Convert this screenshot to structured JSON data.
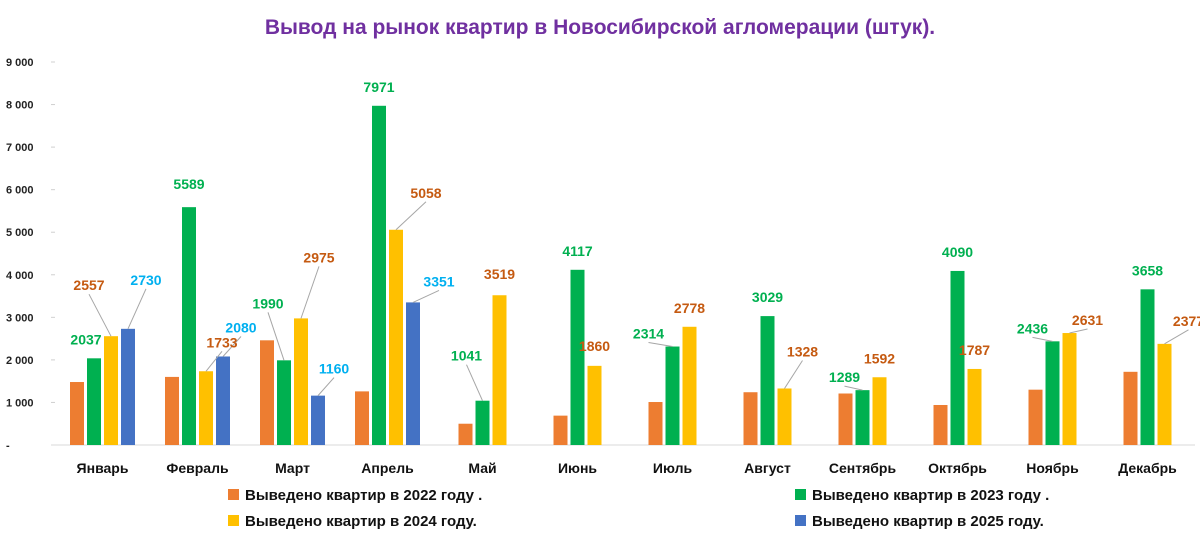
{
  "chart_data": {
    "type": "bar",
    "title": "Вывод на рынок квартир в Новосибирской агломерации (штук).",
    "xlabel": "",
    "ylabel": "",
    "ylim": [
      0,
      9000
    ],
    "yticks": [
      "-",
      "1 000",
      "2 000",
      "3 000",
      "4 000",
      "5 000",
      "6 000",
      "7 000",
      "8 000",
      "9 000"
    ],
    "grid": false,
    "legend_position": "bottom",
    "categories": [
      "Январь",
      "Февраль",
      "Март",
      "Апрель",
      "Май",
      "Июнь",
      "Июль",
      "Август",
      "Сентябрь",
      "Октябрь",
      "Ноябрь",
      "Декабрь"
    ],
    "series": [
      {
        "name": "Выведено квартир в  2022 году .",
        "color": "#ed7d31",
        "label_color": "#c55a11",
        "labeled": false,
        "values": [
          1480,
          1600,
          2460,
          1260,
          500,
          690,
          1010,
          1240,
          1210,
          940,
          1300,
          1720
        ]
      },
      {
        "name": "Выведено квартир в  2023 году .",
        "color": "#00b050",
        "label_color": "#00b050",
        "labeled": true,
        "values": [
          2037,
          5589,
          1990,
          7971,
          1041,
          4117,
          2314,
          3029,
          1289,
          4090,
          2436,
          3658
        ]
      },
      {
        "name": "Выведено квартир  в 2024 году.",
        "color": "#ffc000",
        "label_color": "#c55a11",
        "labeled": true,
        "values": [
          2557,
          1733,
          2975,
          5058,
          3519,
          1860,
          2778,
          1328,
          1592,
          1787,
          2631,
          2377
        ]
      },
      {
        "name": "Выведено квартир  в 2025 году.",
        "color": "#4472c4",
        "label_color": "#00b0f0",
        "labeled": true,
        "values": [
          2730,
          2080,
          1160,
          3351,
          null,
          null,
          null,
          null,
          null,
          null,
          null,
          null
        ]
      }
    ],
    "data_labels": [
      {
        "series": 1,
        "cat": 0,
        "text": "2037"
      },
      {
        "series": 2,
        "cat": 0,
        "text": "2557"
      },
      {
        "series": 3,
        "cat": 0,
        "text": "2730"
      },
      {
        "series": 1,
        "cat": 1,
        "text": "5589"
      },
      {
        "series": 2,
        "cat": 1,
        "text": "1733"
      },
      {
        "series": 3,
        "cat": 1,
        "text": "2080"
      },
      {
        "series": 1,
        "cat": 2,
        "text": "1990"
      },
      {
        "series": 2,
        "cat": 2,
        "text": "2975"
      },
      {
        "series": 3,
        "cat": 2,
        "text": "1160"
      },
      {
        "series": 1,
        "cat": 3,
        "text": "7971"
      },
      {
        "series": 2,
        "cat": 3,
        "text": "5058"
      },
      {
        "series": 3,
        "cat": 3,
        "text": "3351"
      },
      {
        "series": 1,
        "cat": 4,
        "text": "1041"
      },
      {
        "series": 2,
        "cat": 4,
        "text": "3519"
      },
      {
        "series": 1,
        "cat": 5,
        "text": "4117"
      },
      {
        "series": 2,
        "cat": 5,
        "text": "1860"
      },
      {
        "series": 1,
        "cat": 6,
        "text": "2314"
      },
      {
        "series": 2,
        "cat": 6,
        "text": "2778"
      },
      {
        "series": 1,
        "cat": 7,
        "text": "3029"
      },
      {
        "series": 2,
        "cat": 7,
        "text": "1328"
      },
      {
        "series": 1,
        "cat": 8,
        "text": "1289"
      },
      {
        "series": 2,
        "cat": 8,
        "text": "1592"
      },
      {
        "series": 1,
        "cat": 9,
        "text": "4090"
      },
      {
        "series": 2,
        "cat": 9,
        "text": "1787"
      },
      {
        "series": 1,
        "cat": 10,
        "text": "2436"
      },
      {
        "series": 2,
        "cat": 10,
        "text": "2631"
      },
      {
        "series": 1,
        "cat": 11,
        "text": "3658"
      },
      {
        "series": 2,
        "cat": 11,
        "text": "2377"
      }
    ]
  }
}
